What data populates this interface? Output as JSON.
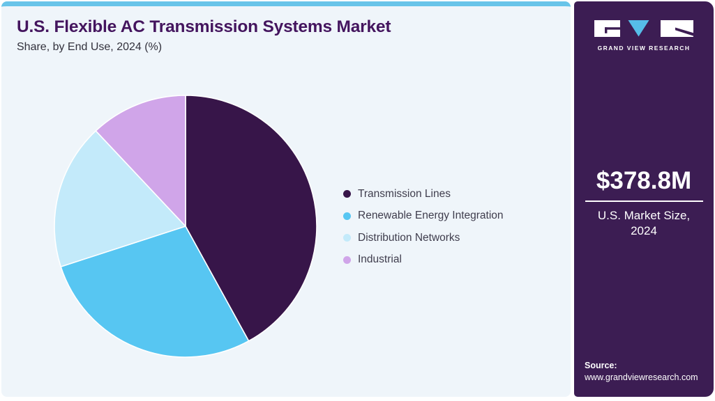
{
  "header": {
    "title": "U.S. Flexible AC Transmission Systems Market",
    "subtitle": "Share, by End Use, 2024 (%)"
  },
  "chart_data": {
    "type": "pie",
    "title": "U.S. Flexible AC Transmission Systems Market Share, by End Use, 2024 (%)",
    "unit": "%",
    "labels": [
      "Transmission Lines",
      "Renewable Energy Integration",
      "Distribution Networks",
      "Industrial"
    ],
    "values": [
      42,
      28,
      18,
      12
    ],
    "colors": [
      "#371549",
      "#57c6f2",
      "#c3eafa",
      "#d0a5e9"
    ],
    "legend_position": "right",
    "start_angle_deg": 0,
    "direction": "clockwise"
  },
  "sidebar": {
    "brand": {
      "name": "GRAND VIEW RESEARCH"
    },
    "market_size": {
      "value": "$378.8M",
      "caption_line1": "U.S. Market Size,",
      "caption_line2": "2024"
    },
    "source": {
      "label": "Source:",
      "url": "www.grandviewresearch.com"
    }
  },
  "colors": {
    "card_bg": "#eff5fa",
    "strip": "#68c4e9",
    "sidebar_bg": "#3c1d53",
    "title": "#44155e",
    "subtitle": "#32313c",
    "legend_text": "#3f3d4d",
    "logo_triangle": "#56bde8"
  }
}
